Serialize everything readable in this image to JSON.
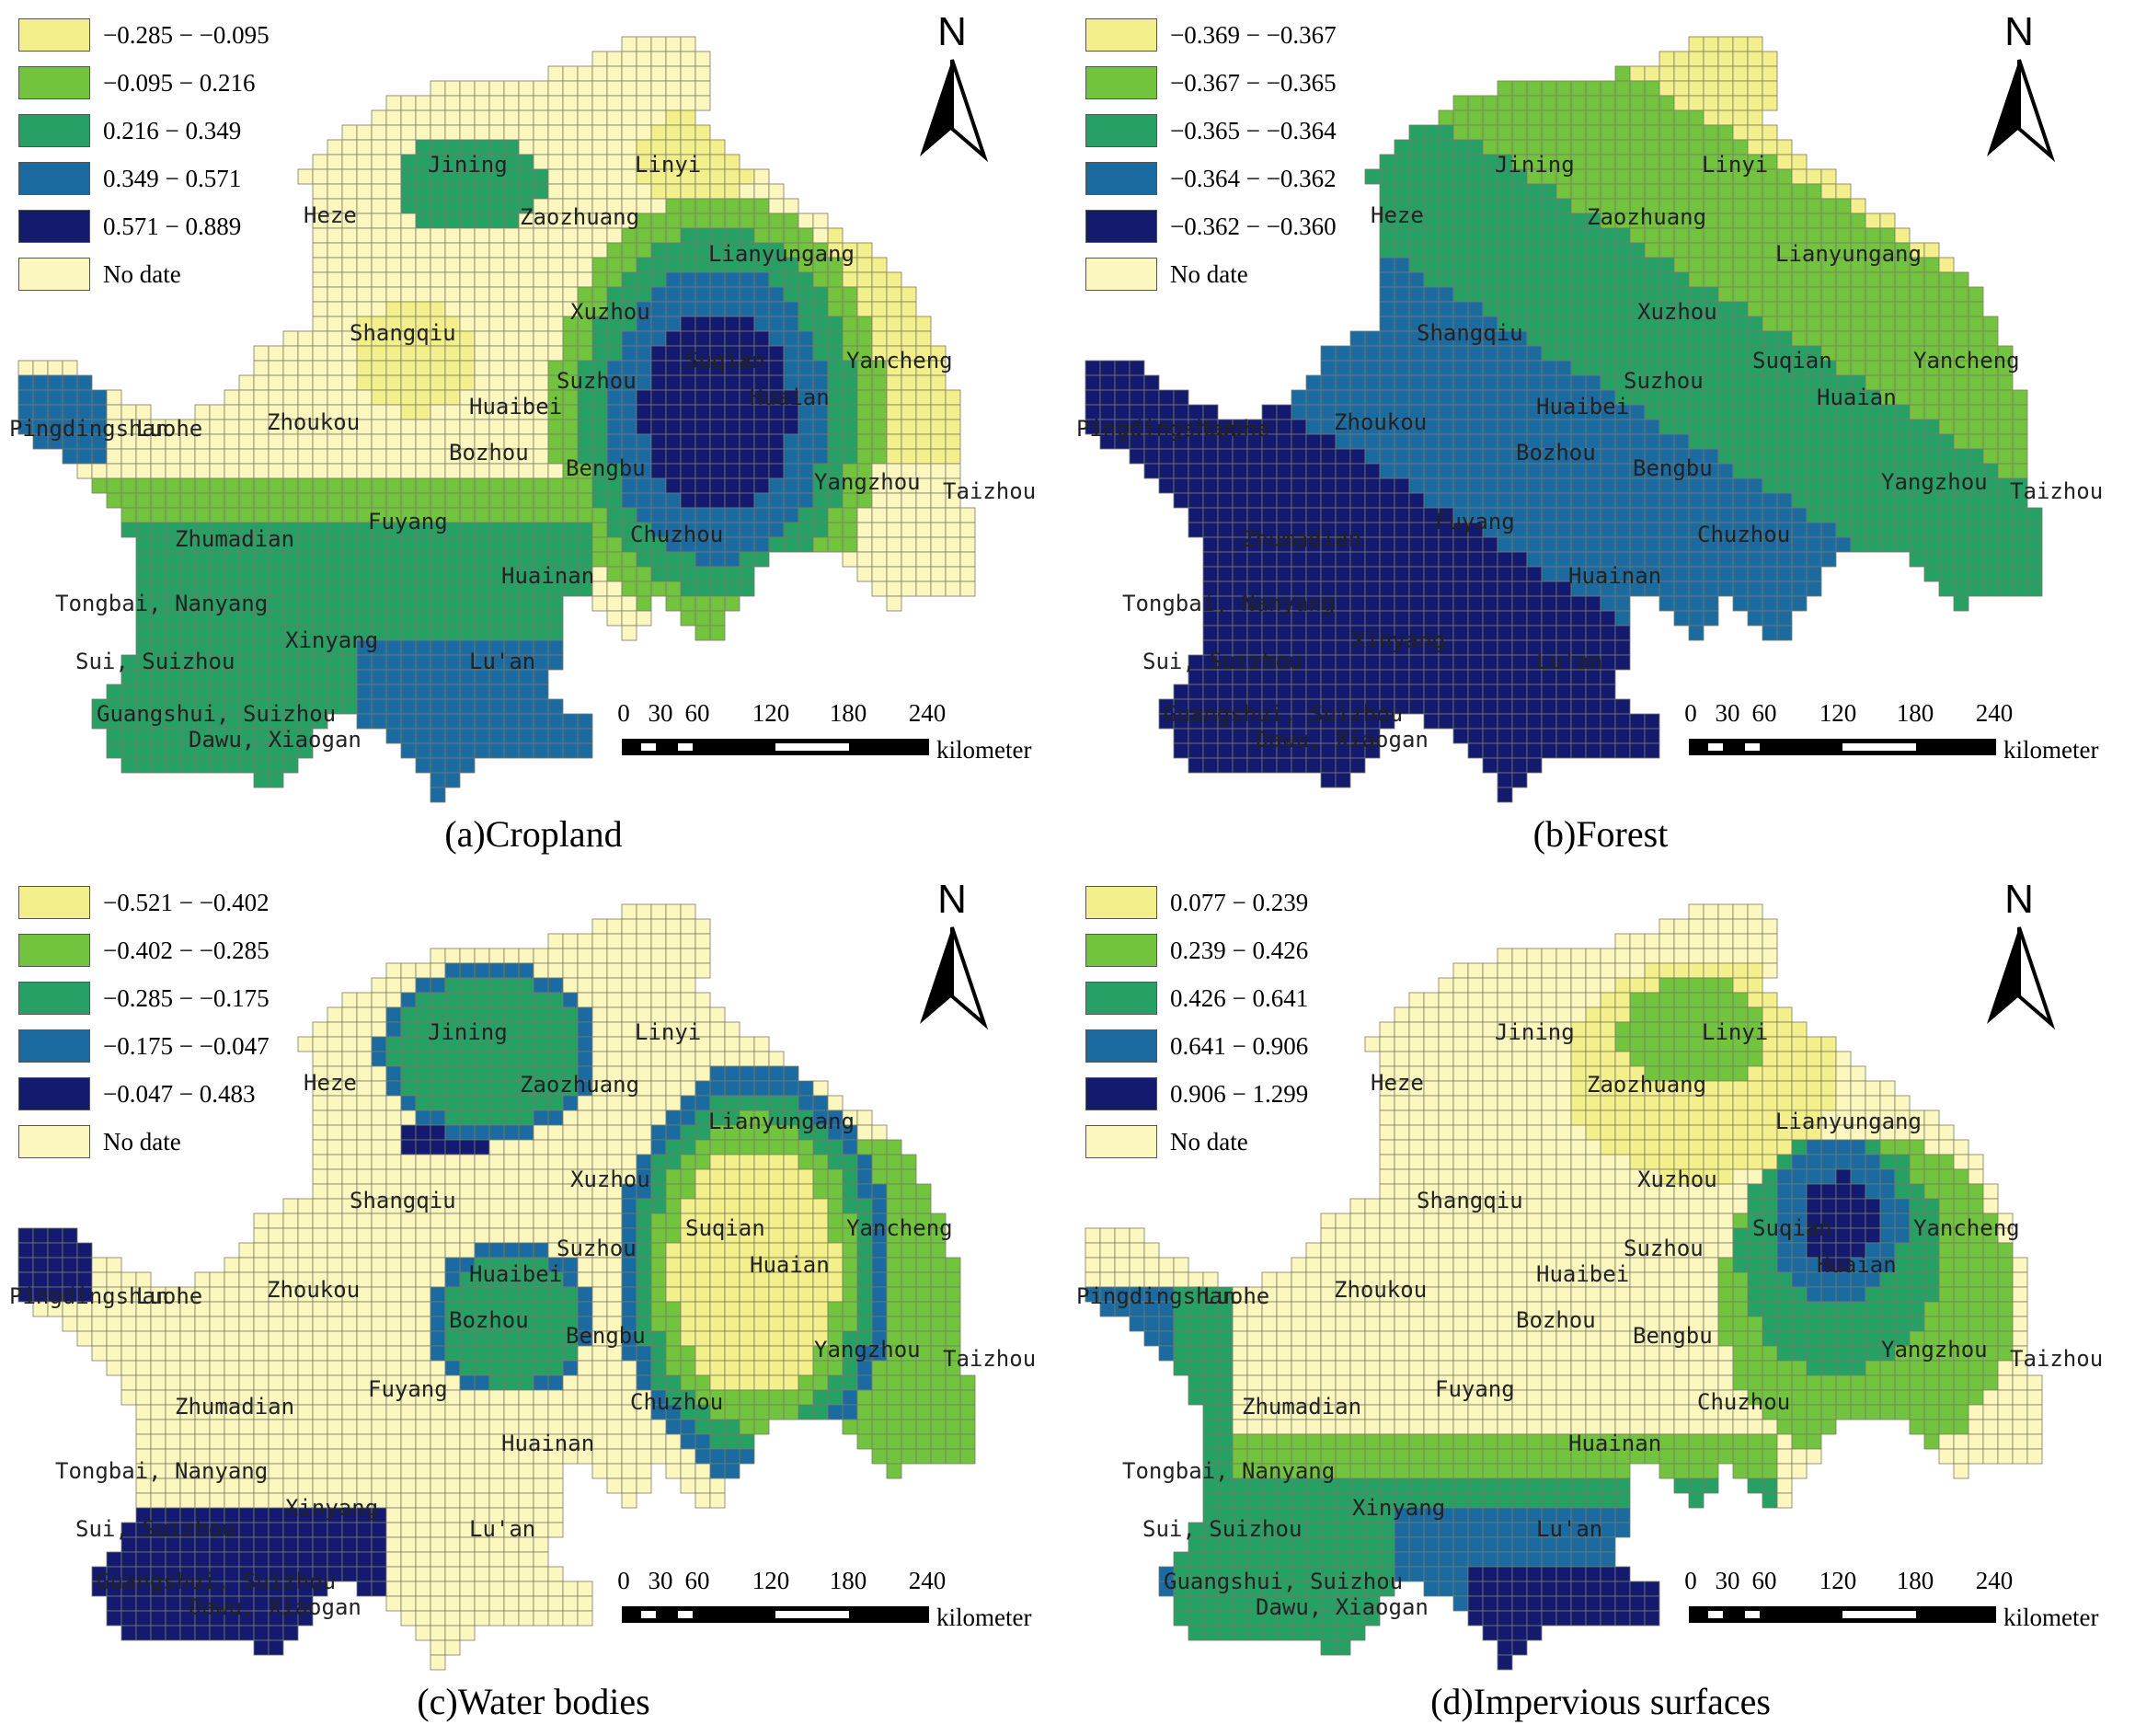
{
  "scale": {
    "ticks": [
      "0",
      "30",
      "60",
      "120",
      "180",
      "240"
    ],
    "unit": "kilometer"
  },
  "north_label": "N",
  "no_data_label": "No date",
  "panels": [
    {
      "caption": "(a)Cropland",
      "legend": [
        {
          "label": "−0.285 − −0.095",
          "color": "#f3ef8a"
        },
        {
          "label": "−0.095 − 0.216",
          "color": "#72c43e"
        },
        {
          "label": "0.216 − 0.349",
          "color": "#26a064"
        },
        {
          "label": "0.349 − 0.571",
          "color": "#1b6aa0"
        },
        {
          "label": "0.571 − 0.889",
          "color": "#141a6e"
        },
        {
          "label": "No date",
          "color": "#fbf7bf"
        }
      ],
      "cities": [
        "Jining",
        "Linyi",
        "Heze",
        "Zaozhuang",
        "Lianyungang",
        "Xuzhou",
        "Shangqiu",
        "Suqian",
        "Yancheng",
        "Suzhou",
        "Huaian",
        "Huaibei",
        "Pingdingshan",
        "Luohe",
        "Zhoukou",
        "Bozhou",
        "Bengbu",
        "Yangzhou",
        "Taizhou",
        "Fuyang",
        "Chuzhou",
        "Zhumadian",
        "Huainan",
        "Tongbai, Nanyang",
        "Xinyang",
        "Sui, Suizhou",
        "Lu'an",
        "Guangshui, Suizhou",
        "Dawu, Xiaogan"
      ]
    },
    {
      "caption": "(b)Forest",
      "legend": [
        {
          "label": "−0.369 − −0.367",
          "color": "#f3ef8a"
        },
        {
          "label": "−0.367 − −0.365",
          "color": "#72c43e"
        },
        {
          "label": "−0.365 − −0.364",
          "color": "#26a064"
        },
        {
          "label": "−0.364 − −0.362",
          "color": "#1b6aa0"
        },
        {
          "label": "−0.362 − −0.360",
          "color": "#141a6e"
        },
        {
          "label": "No date",
          "color": "#fbf7bf"
        }
      ],
      "cities": [
        "Jining",
        "Linyi",
        "Heze",
        "Zaozhuang",
        "Lianyungang",
        "Xuzhou",
        "Shangqiu",
        "Suqian",
        "Yancheng",
        "Suzhou",
        "Huaian",
        "Huaibei",
        "Pingdingshan",
        "Luohe",
        "Zhoukou",
        "Bozhou",
        "Bengbu",
        "Yangzhou",
        "Taizhou",
        "Fuyang",
        "Chuzhou",
        "Zhumadian",
        "Huainan",
        "Tongbai, Nanyang",
        "Xinyang",
        "Sui, Suizhou",
        "Lu'an",
        "Guangshui, Suizhou",
        "Dawu, Xiaogan"
      ]
    },
    {
      "caption": "(c)Water bodies",
      "legend": [
        {
          "label": "−0.521 − −0.402",
          "color": "#f3ef8a"
        },
        {
          "label": "−0.402 − −0.285",
          "color": "#72c43e"
        },
        {
          "label": "−0.285 − −0.175",
          "color": "#26a064"
        },
        {
          "label": "−0.175 − −0.047",
          "color": "#1b6aa0"
        },
        {
          "label": "−0.047 − 0.483",
          "color": "#141a6e"
        },
        {
          "label": "No date",
          "color": "#fbf7bf"
        }
      ],
      "cities": [
        "Jining",
        "Linyi",
        "Heze",
        "Zaozhuang",
        "Lianyungang",
        "Xuzhou",
        "Shangqiu",
        "Suqian",
        "Yancheng",
        "Suzhou",
        "Huaian",
        "Huaibei",
        "Pingdingshan",
        "Luohe",
        "Zhoukou",
        "Bozhou",
        "Bengbu",
        "Yangzhou",
        "Taizhou",
        "Fuyang",
        "Chuzhou",
        "Zhumadian",
        "Huainan",
        "Tongbai, Nanyang",
        "Xinyang",
        "Sui, Suizhou",
        "Lu'an",
        "Guangshui, Suizhou",
        "Dawu, Xiaogan"
      ]
    },
    {
      "caption": "(d)Impervious surfaces",
      "legend": [
        {
          "label": "0.077 − 0.239",
          "color": "#f3ef8a"
        },
        {
          "label": "0.239 − 0.426",
          "color": "#72c43e"
        },
        {
          "label": "0.426 − 0.641",
          "color": "#26a064"
        },
        {
          "label": "0.641 − 0.906",
          "color": "#1b6aa0"
        },
        {
          "label": "0.906 − 1.299",
          "color": "#141a6e"
        },
        {
          "label": "No date",
          "color": "#fbf7bf"
        }
      ],
      "cities": [
        "Jining",
        "Linyi",
        "Heze",
        "Zaozhuang",
        "Lianyungang",
        "Xuzhou",
        "Shangqiu",
        "Suqian",
        "Yancheng",
        "Suzhou",
        "Huaian",
        "Huaibei",
        "Pingdingshan",
        "Luohe",
        "Zhoukou",
        "Bozhou",
        "Bengbu",
        "Yangzhou",
        "Taizhou",
        "Fuyang",
        "Chuzhou",
        "Zhumadian",
        "Huainan",
        "Tongbai, Nanyang",
        "Xinyang",
        "Sui, Suizhou",
        "Lu'an",
        "Guangshui, Suizhou",
        "Dawu, Xiaogan"
      ]
    }
  ]
}
